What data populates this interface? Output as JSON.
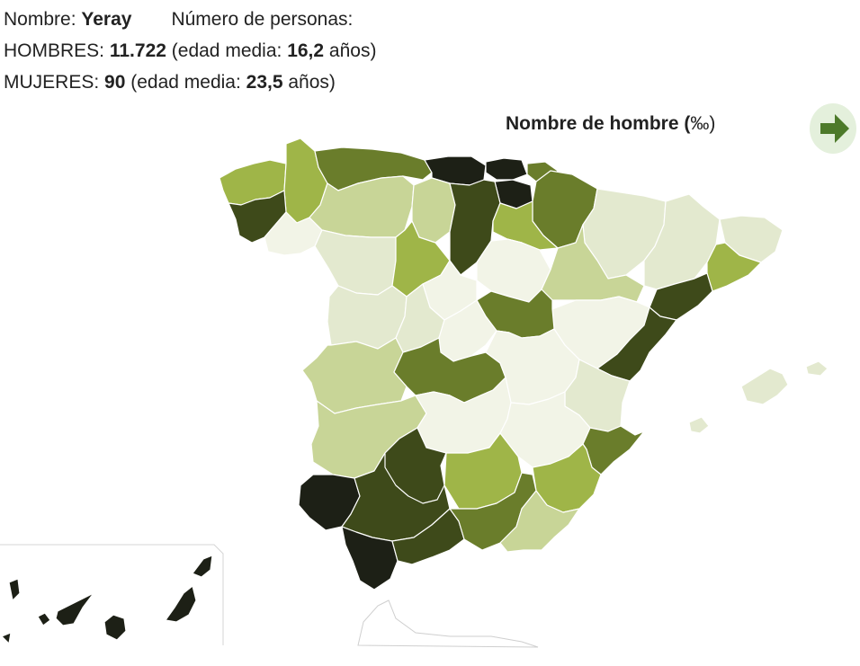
{
  "info": {
    "name_label": "Nombre:",
    "name_value": "Yeray",
    "count_label": "Número de personas:",
    "men_label": "HOMBRES:",
    "men_count": "11.722",
    "men_age_pre": "(edad media:",
    "men_age": "16,2",
    "men_age_post": "años)",
    "women_label": "MUJERES:",
    "women_count": "90",
    "women_age_pre": "(edad media:",
    "women_age": "23,5",
    "women_age_post": "años)"
  },
  "map": {
    "title_bold": "Nombre de hombre (",
    "title_unit": "‰)",
    "next_icon": "arrow-right-icon",
    "scale_colors": [
      "#f2f4e7",
      "#e3e9cf",
      "#c8d597",
      "#9fb548",
      "#6a7d2b",
      "#3e4a1a",
      "#1d2016"
    ]
  }
}
